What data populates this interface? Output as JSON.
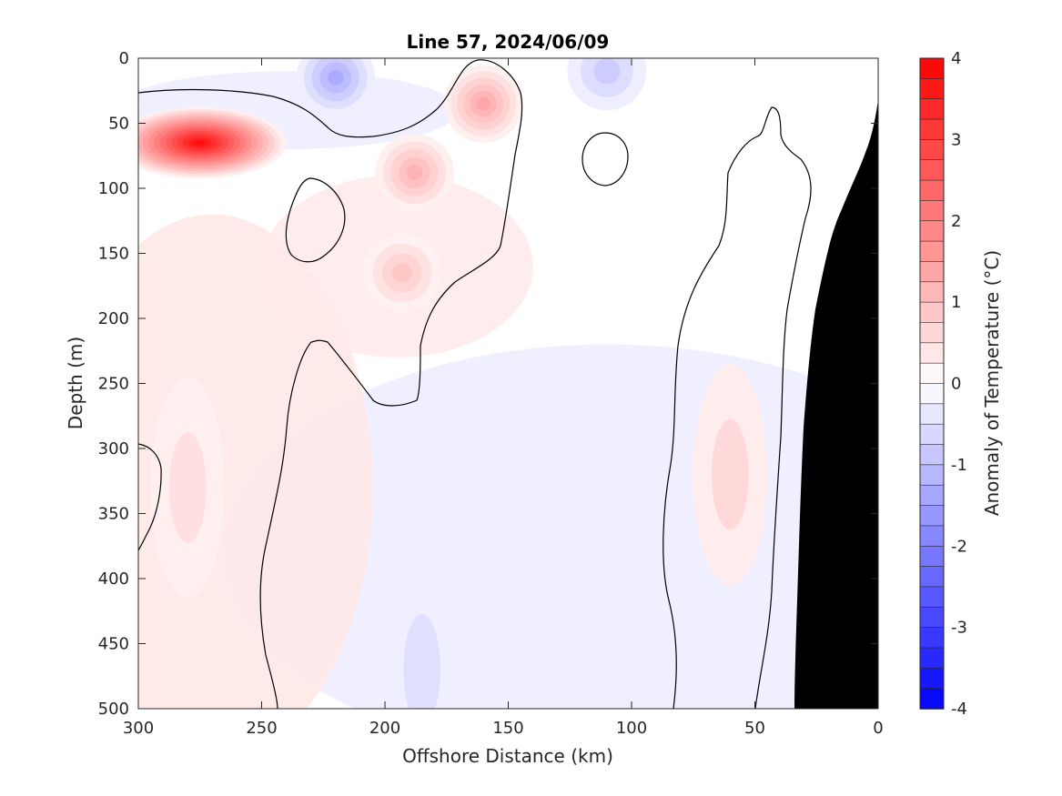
{
  "chart_data": {
    "type": "heatmap",
    "title": "Line 57, 2024/06/09",
    "xlabel": "Offshore Distance (km)",
    "ylabel": "Depth (m)",
    "colorbar_label": "Anomaly of Temperature (°C)",
    "x_range": [
      300,
      0
    ],
    "y_range": [
      0,
      500
    ],
    "x_ticks": [
      "300",
      "250",
      "200",
      "150",
      "100",
      "50",
      "0"
    ],
    "y_ticks": [
      "0",
      "50",
      "100",
      "150",
      "200",
      "250",
      "300",
      "350",
      "400",
      "450",
      "500"
    ],
    "colorbar_range": [
      -4,
      4
    ],
    "colorbar_ticks": [
      "4",
      "3",
      "2",
      "1",
      "0",
      "-1",
      "-2",
      "-3",
      "-4"
    ],
    "colorbar_levels": 32,
    "contour_level": 0,
    "colors": {
      "warm": "#ff0000",
      "cold": "#0000ff",
      "neutral": "#ffffff",
      "bathymetry": "#000000",
      "contour": "#000000"
    },
    "features": [
      {
        "sign": "warm",
        "peak_anomaly": 3.8,
        "x_km": 275,
        "depth_m": 65
      },
      {
        "sign": "warm",
        "peak_anomaly": 1.4,
        "x_km": 160,
        "depth_m": 35
      },
      {
        "sign": "warm",
        "peak_anomaly": 1.2,
        "x_km": 188,
        "depth_m": 88
      },
      {
        "sign": "warm",
        "peak_anomaly": 0.9,
        "x_km": 193,
        "depth_m": 165
      },
      {
        "sign": "warm",
        "peak_anomaly": 0.6,
        "x_km": 60,
        "depth_m": 320
      },
      {
        "sign": "warm",
        "peak_anomaly": 0.5,
        "x_km": 280,
        "depth_m": 330
      },
      {
        "sign": "cold",
        "peak_anomaly": -1.3,
        "x_km": 220,
        "depth_m": 15
      },
      {
        "sign": "cold",
        "peak_anomaly": -0.8,
        "x_km": 110,
        "depth_m": 10
      },
      {
        "sign": "cold",
        "peak_anomaly": -0.5,
        "x_km": 185,
        "depth_m": 470
      }
    ]
  }
}
